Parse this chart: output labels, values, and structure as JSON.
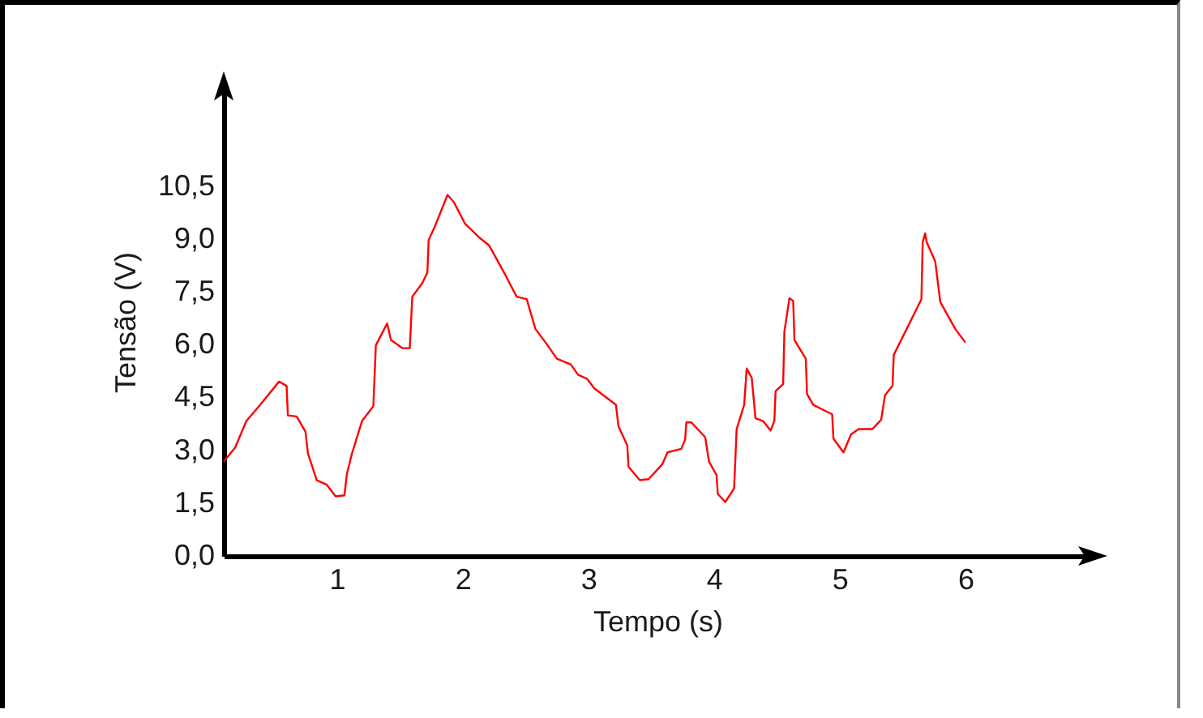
{
  "chart_data": {
    "type": "line",
    "xlabel": "Tempo (s)",
    "ylabel": "Tensão (V)",
    "xlim": [
      0.1,
      7.0
    ],
    "ylim": [
      0,
      13.3
    ],
    "xticks": [
      1,
      2,
      3,
      4,
      5,
      6
    ],
    "yticks": [
      {
        "value": 0,
        "label": "0,0"
      },
      {
        "value": 1.5,
        "label": "1,5"
      },
      {
        "value": 3,
        "label": "3,0"
      },
      {
        "value": 4.5,
        "label": "4,5"
      },
      {
        "value": 6,
        "label": "6,0"
      },
      {
        "value": 7.5,
        "label": "7,5"
      },
      {
        "value": 9,
        "label": "9,0"
      },
      {
        "value": 10.5,
        "label": "10,5"
      }
    ],
    "grid": false,
    "legend": false,
    "marker": "none",
    "line_style": "solid",
    "x": [
      0.1,
      0.19,
      0.28,
      0.39,
      0.54,
      0.6,
      0.61,
      0.68,
      0.75,
      0.77,
      0.84,
      0.92,
      0.99,
      1.06,
      1.08,
      1.12,
      1.2,
      1.29,
      1.31,
      1.4,
      1.43,
      1.52,
      1.58,
      1.6,
      1.68,
      1.72,
      1.73,
      1.78,
      1.88,
      1.93,
      2.02,
      2.13,
      2.21,
      2.34,
      2.43,
      2.51,
      2.58,
      2.66,
      2.75,
      2.86,
      2.92,
      2.99,
      3.05,
      3.22,
      3.24,
      3.31,
      3.32,
      3.41,
      3.48,
      3.59,
      3.63,
      3.74,
      3.77,
      3.78,
      3.82,
      3.93,
      3.96,
      4.02,
      4.03,
      4.09,
      4.16,
      4.18,
      4.24,
      4.26,
      4.3,
      4.33,
      4.39,
      4.45,
      4.48,
      4.49,
      4.55,
      4.56,
      4.6,
      4.63,
      4.64,
      4.73,
      4.74,
      4.79,
      4.94,
      4.95,
      5.03,
      5.09,
      5.15,
      5.26,
      5.33,
      5.36,
      5.42,
      5.43,
      5.65,
      5.66,
      5.68,
      5.69,
      5.76,
      5.8,
      5.92,
      6.0
    ],
    "series": [
      {
        "color": "#ff0000",
        "values": [
          2.68,
          3.07,
          3.83,
          4.29,
          4.95,
          4.83,
          3.99,
          3.96,
          3.53,
          2.91,
          2.15,
          2.02,
          1.69,
          1.72,
          2.33,
          2.91,
          3.83,
          4.25,
          5.98,
          6.6,
          6.13,
          5.9,
          5.9,
          7.36,
          7.75,
          8.05,
          8.97,
          9.36,
          10.25,
          10.05,
          9.43,
          9.05,
          8.82,
          7.98,
          7.36,
          7.29,
          6.44,
          6.06,
          5.6,
          5.44,
          5.14,
          5.03,
          4.75,
          4.29,
          3.68,
          3.14,
          2.53,
          2.15,
          2.18,
          2.61,
          2.94,
          3.04,
          3.3,
          3.79,
          3.79,
          3.37,
          2.68,
          2.3,
          1.76,
          1.53,
          1.92,
          3.6,
          4.29,
          5.32,
          5.06,
          3.91,
          3.83,
          3.56,
          3.83,
          4.68,
          4.88,
          6.37,
          7.32,
          7.24,
          6.13,
          5.6,
          4.6,
          4.29,
          4.02,
          3.33,
          2.94,
          3.45,
          3.6,
          3.6,
          3.87,
          4.56,
          4.83,
          5.71,
          7.29,
          8.9,
          9.16,
          8.93,
          8.36,
          7.21,
          6.44,
          6.06
        ]
      }
    ]
  }
}
